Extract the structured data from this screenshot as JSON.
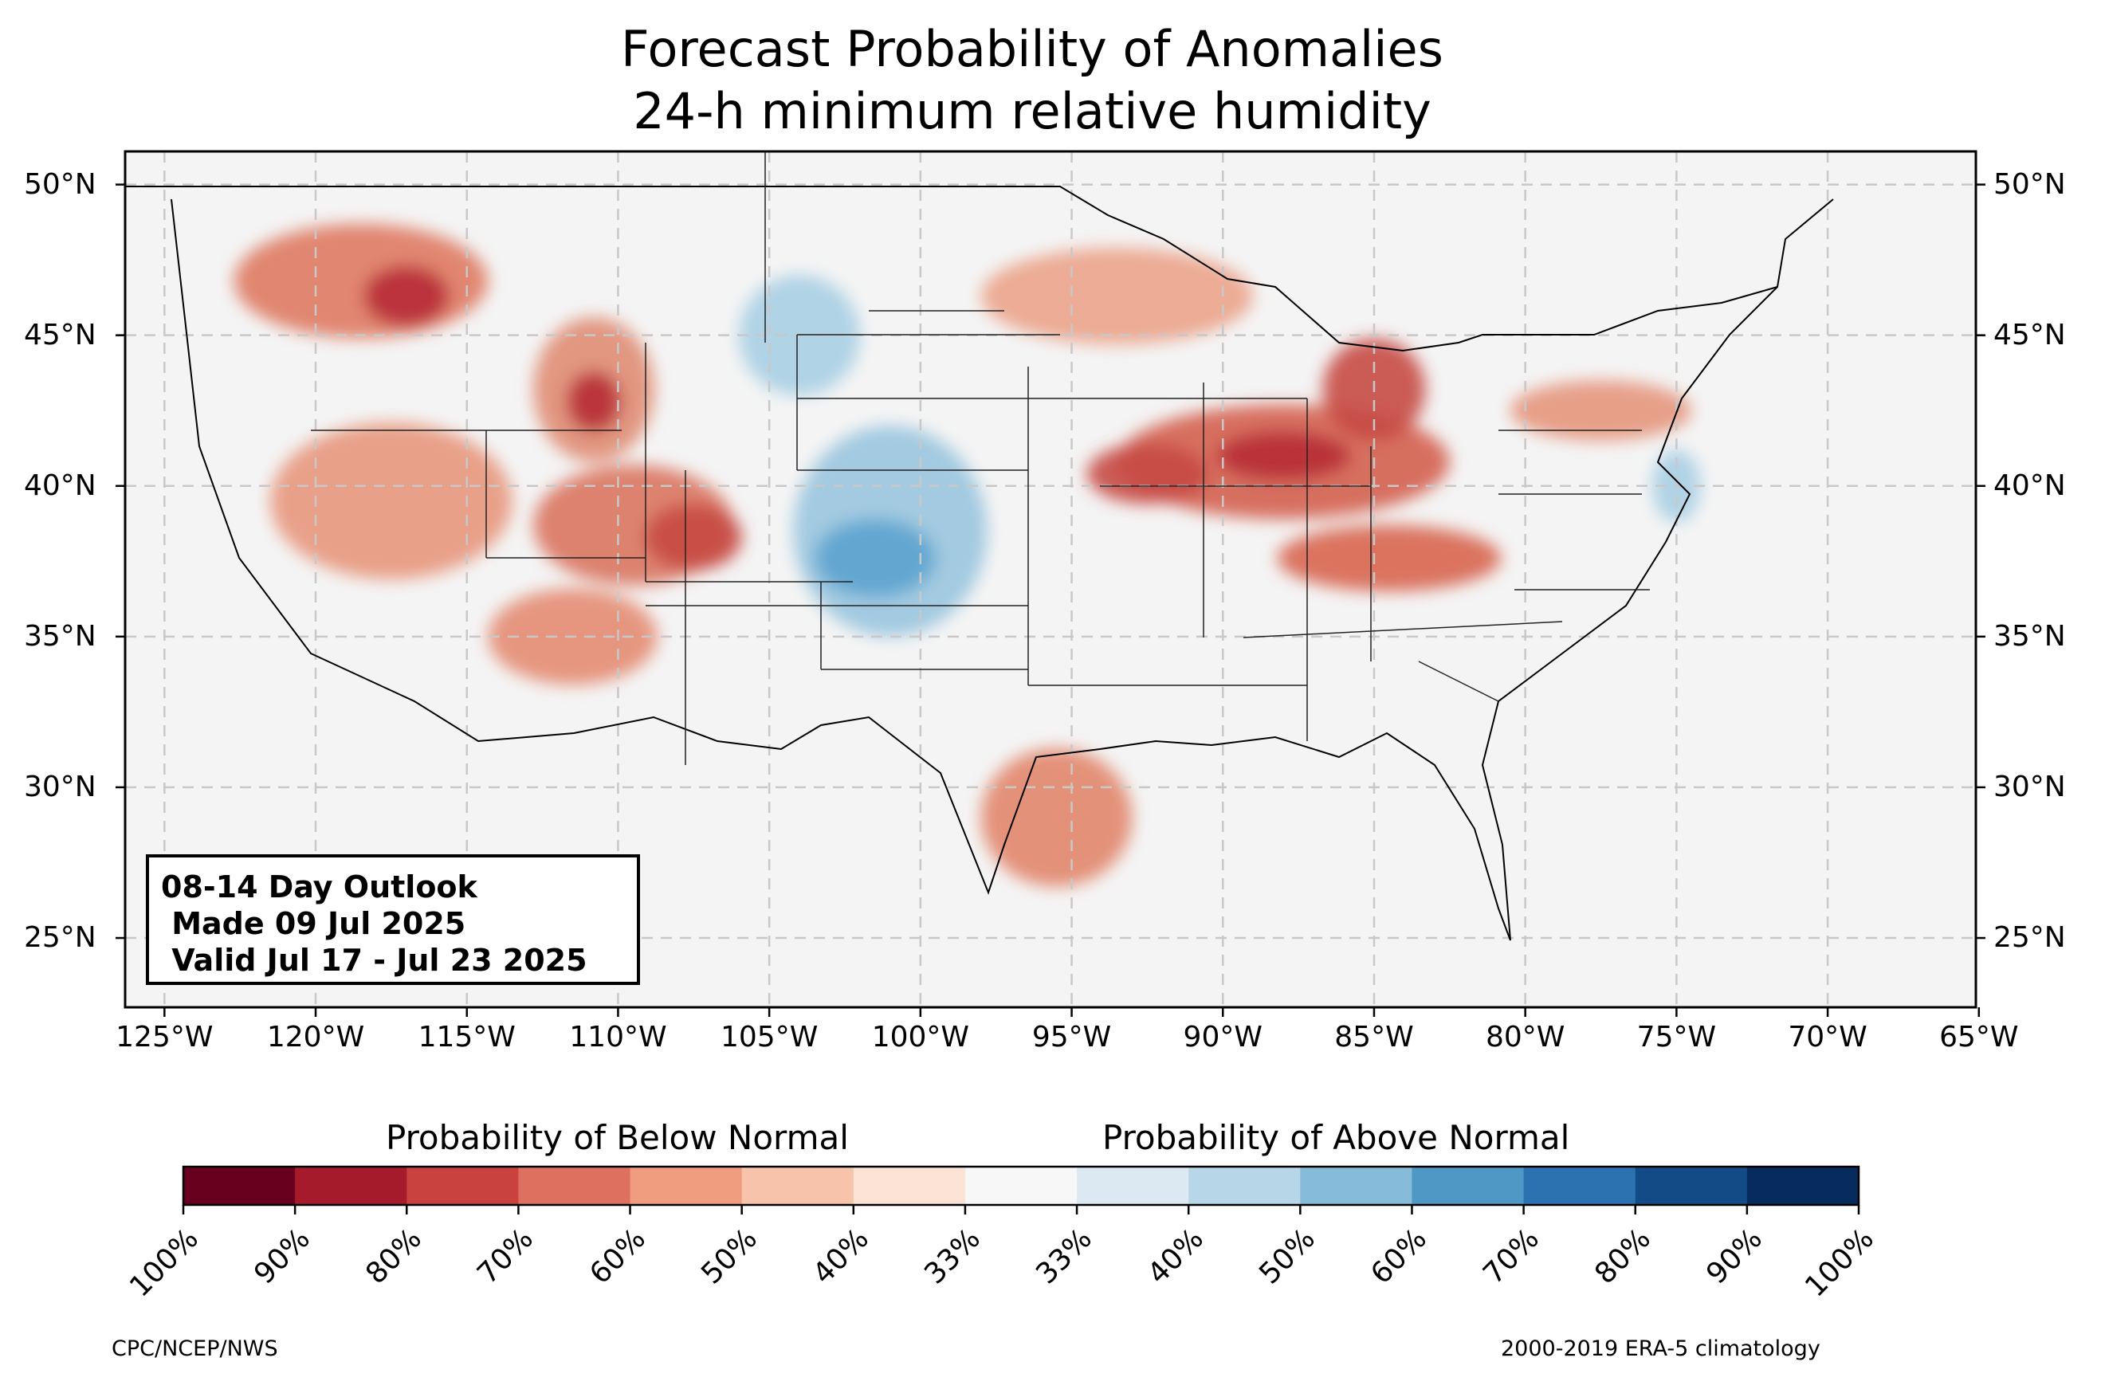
{
  "header": {
    "title_line1": "Forecast Probability of Anomalies",
    "title_line2": "24-h minimum relative humidity"
  },
  "outlook_box": {
    "line1": "08-14 Day Outlook",
    "line2": " Made 09 Jul 2025",
    "line3": " Valid Jul 17 - Jul 23 2025"
  },
  "map": {
    "lon_min": -126.3,
    "lon_max": -65.1,
    "lat_min": 22.7,
    "lat_max": 51.1,
    "lon_ticks": [
      -125,
      -120,
      -115,
      -110,
      -105,
      -100,
      -95,
      -90,
      -85,
      -80,
      -75,
      -70,
      -65
    ],
    "lon_tick_labels": [
      "125°W",
      "120°W",
      "115°W",
      "110°W",
      "105°W",
      "100°W",
      "95°W",
      "90°W",
      "85°W",
      "80°W",
      "75°W",
      "70°W",
      "65°W"
    ],
    "lat_ticks": [
      50,
      45,
      40,
      35,
      30,
      25
    ],
    "lat_tick_labels": [
      "50°N",
      "45°N",
      "40°N",
      "35°N",
      "30°N",
      "25°N"
    ],
    "gridlines": true,
    "background_color": "#f4f4f4",
    "regions": [
      {
        "area": "Pacific Northwest / N. Rockies",
        "lon": -118.5,
        "lat": 46.8,
        "rx": 4.2,
        "ry": 1.9,
        "color": "#df7a63"
      },
      {
        "area": "N. Idaho panhandle",
        "lon": -117.0,
        "lat": 46.3,
        "rx": 1.4,
        "ry": 1.0,
        "color": "#b72c36"
      },
      {
        "area": "Wyoming / Idaho",
        "lon": -110.8,
        "lat": 43.2,
        "rx": 2.0,
        "ry": 2.4,
        "color": "#e08d74"
      },
      {
        "area": "Wyoming core",
        "lon": -110.8,
        "lat": 42.8,
        "rx": 0.9,
        "ry": 1.0,
        "color": "#b72c36"
      },
      {
        "area": "Great Basin / California",
        "lon": -117.5,
        "lat": 39.5,
        "rx": 4.0,
        "ry": 2.6,
        "color": "#e8977d"
      },
      {
        "area": "Colorado Plateau",
        "lon": -109.5,
        "lat": 38.7,
        "rx": 3.3,
        "ry": 2.0,
        "color": "#da7560"
      },
      {
        "area": "Colorado",
        "lon": -107.5,
        "lat": 38.3,
        "rx": 1.6,
        "ry": 1.1,
        "color": "#c64a44"
      },
      {
        "area": "Arizona",
        "lon": -111.5,
        "lat": 35.0,
        "rx": 2.8,
        "ry": 1.6,
        "color": "#e48c72"
      },
      {
        "area": "Upper Midwest",
        "lon": -93.5,
        "lat": 46.3,
        "rx": 4.5,
        "ry": 1.6,
        "color": "#eba48b"
      },
      {
        "area": "Ohio Valley",
        "lon": -88.0,
        "lat": 40.8,
        "rx": 5.5,
        "ry": 1.9,
        "color": "#d4604f"
      },
      {
        "area": "Illinois / Indiana core",
        "lon": -88.0,
        "lat": 41.0,
        "rx": 2.2,
        "ry": 0.8,
        "color": "#b72c36"
      },
      {
        "area": "Michigan",
        "lon": -85.0,
        "lat": 43.2,
        "rx": 1.7,
        "ry": 1.7,
        "color": "#c64a44"
      },
      {
        "area": "Missouri / Iowa",
        "lon": -92.5,
        "lat": 40.4,
        "rx": 2.0,
        "ry": 1.0,
        "color": "#c64a44"
      },
      {
        "area": "Kentucky / Tennessee",
        "lon": -84.5,
        "lat": 37.6,
        "rx": 3.7,
        "ry": 1.1,
        "color": "#d8654f"
      },
      {
        "area": "Pennsylvania / New York",
        "lon": -77.5,
        "lat": 42.5,
        "rx": 3.0,
        "ry": 1.0,
        "color": "#e6967d"
      },
      {
        "area": "Texas Gulf Coast",
        "lon": -95.5,
        "lat": 29.0,
        "rx": 2.5,
        "ry": 2.3,
        "color": "#e2866c"
      },
      {
        "area": "Northern Plains",
        "lon": -104.0,
        "lat": 45.0,
        "rx": 2.0,
        "ry": 2.0,
        "color": "#a9cfe4"
      },
      {
        "area": "Central Plains",
        "lon": -101.0,
        "lat": 38.5,
        "rx": 3.2,
        "ry": 3.5,
        "color": "#9ac5df"
      },
      {
        "area": "Kansas / Oklahoma core",
        "lon": -101.5,
        "lat": 37.6,
        "rx": 2.0,
        "ry": 1.3,
        "color": "#5da3cf"
      },
      {
        "area": "Mid-Atlantic coast",
        "lon": -75.0,
        "lat": 40.0,
        "rx": 0.8,
        "ry": 1.2,
        "color": "#a9cfe4"
      }
    ]
  },
  "colorbar": {
    "below_label": "Probability of Below Normal",
    "above_label": "Probability of Above Normal",
    "tick_labels": [
      "100%",
      "90%",
      "80%",
      "70%",
      "60%",
      "50%",
      "40%",
      "33%",
      "33%",
      "40%",
      "50%",
      "60%",
      "70%",
      "80%",
      "90%",
      "100%"
    ],
    "colors": [
      "#67001f",
      "#a51b2b",
      "#c9423f",
      "#de7060",
      "#ef9c7f",
      "#f7c4ab",
      "#fbe3d6",
      "#f7f7f7",
      "#dce9f2",
      "#b7d6e8",
      "#86bcd9",
      "#4f97c5",
      "#2d72b0",
      "#134b86",
      "#062b5c"
    ]
  },
  "footer": {
    "left_credit": "CPC/NCEP/NWS",
    "right_credit": "2000-2019 ERA-5 climatology"
  }
}
